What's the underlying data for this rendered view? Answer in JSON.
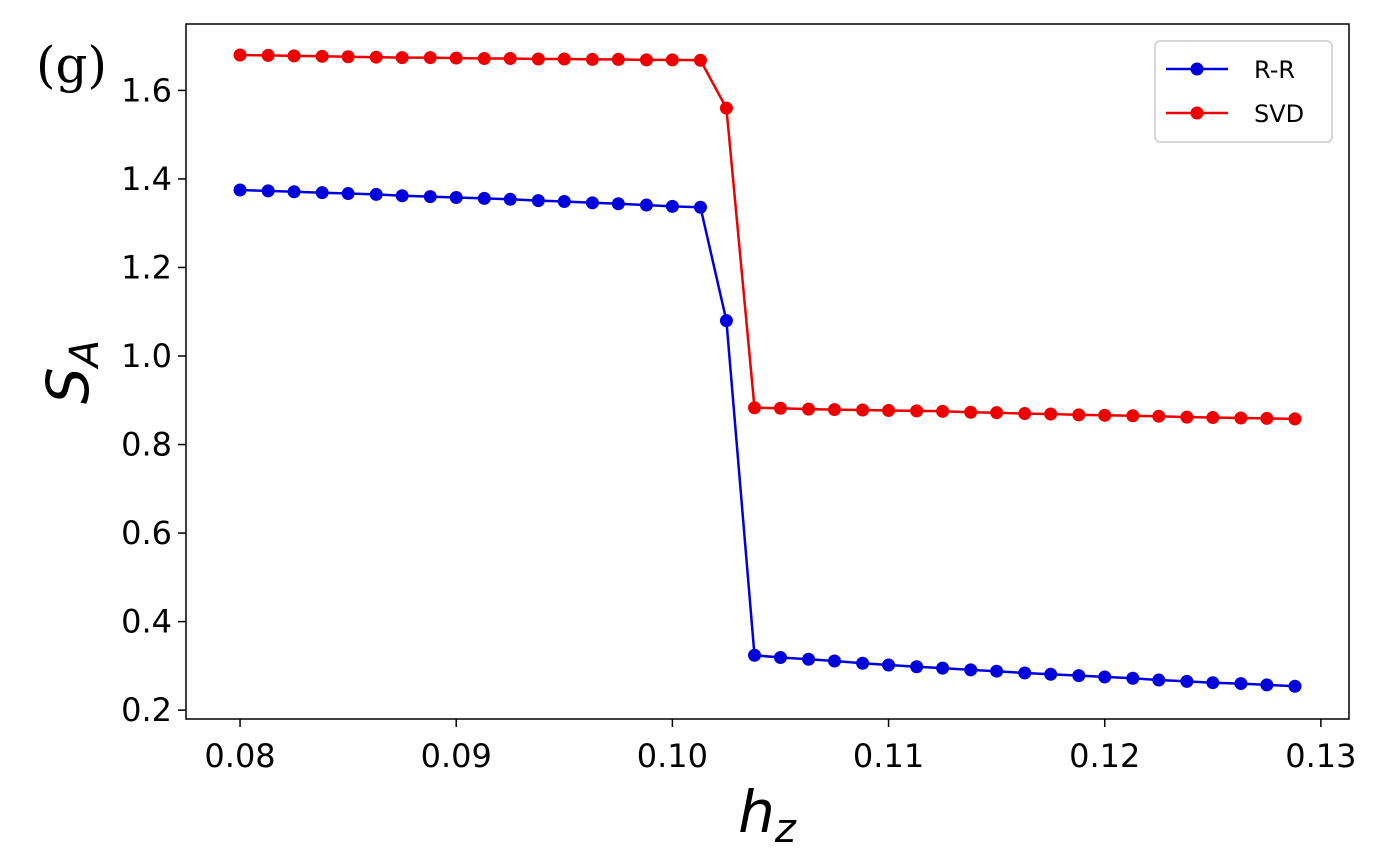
{
  "panel_label": "(g)",
  "chart_data": {
    "type": "line",
    "xlabel": "h",
    "xlabel_sub": "z",
    "ylabel": "S",
    "ylabel_sub": "A",
    "xlim": [
      0.0775,
      0.1313
    ],
    "ylim": [
      0.18,
      1.75
    ],
    "xticks": [
      0.08,
      0.09,
      0.1,
      0.11,
      0.12,
      0.13
    ],
    "xtick_labels": [
      "0.08",
      "0.09",
      "0.10",
      "0.11",
      "0.12",
      "0.13"
    ],
    "yticks": [
      0.2,
      0.4,
      0.6,
      0.8,
      1.0,
      1.2,
      1.4,
      1.6
    ],
    "ytick_labels": [
      "0.2",
      "0.4",
      "0.6",
      "0.8",
      "1.0",
      "1.2",
      "1.4",
      "1.6"
    ],
    "grid": false,
    "legend_position": "top-right",
    "x": [
      0.08,
      0.0813,
      0.0825,
      0.0838,
      0.085,
      0.0863,
      0.0875,
      0.0888,
      0.09,
      0.0913,
      0.0925,
      0.0938,
      0.095,
      0.0963,
      0.0975,
      0.0988,
      0.1,
      0.1013,
      0.1025,
      0.1038,
      0.105,
      0.1063,
      0.1075,
      0.1088,
      0.11,
      0.1113,
      0.1125,
      0.1138,
      0.115,
      0.1163,
      0.1175,
      0.1188,
      0.12,
      0.1213,
      0.1225,
      0.1238,
      0.125,
      0.1263,
      0.1275,
      0.1288
    ],
    "series": [
      {
        "name": "R-R",
        "color": "#0000dd",
        "values": [
          1.375,
          1.373,
          1.371,
          1.369,
          1.367,
          1.365,
          1.362,
          1.36,
          1.358,
          1.356,
          1.354,
          1.351,
          1.349,
          1.346,
          1.344,
          1.341,
          1.338,
          1.336,
          1.08,
          0.324,
          0.319,
          0.315,
          0.311,
          0.306,
          0.302,
          0.298,
          0.295,
          0.291,
          0.288,
          0.284,
          0.281,
          0.278,
          0.275,
          0.272,
          0.268,
          0.265,
          0.262,
          0.26,
          0.257,
          0.254
        ]
      },
      {
        "name": "SVD",
        "color": "#ee0000",
        "values": [
          1.68,
          1.679,
          1.678,
          1.677,
          1.676,
          1.675,
          1.674,
          1.674,
          1.673,
          1.672,
          1.672,
          1.671,
          1.671,
          1.67,
          1.67,
          1.669,
          1.669,
          1.668,
          1.56,
          0.883,
          0.882,
          0.88,
          0.879,
          0.878,
          0.877,
          0.876,
          0.875,
          0.873,
          0.872,
          0.87,
          0.869,
          0.867,
          0.866,
          0.865,
          0.864,
          0.862,
          0.861,
          0.86,
          0.859,
          0.858
        ]
      }
    ]
  }
}
